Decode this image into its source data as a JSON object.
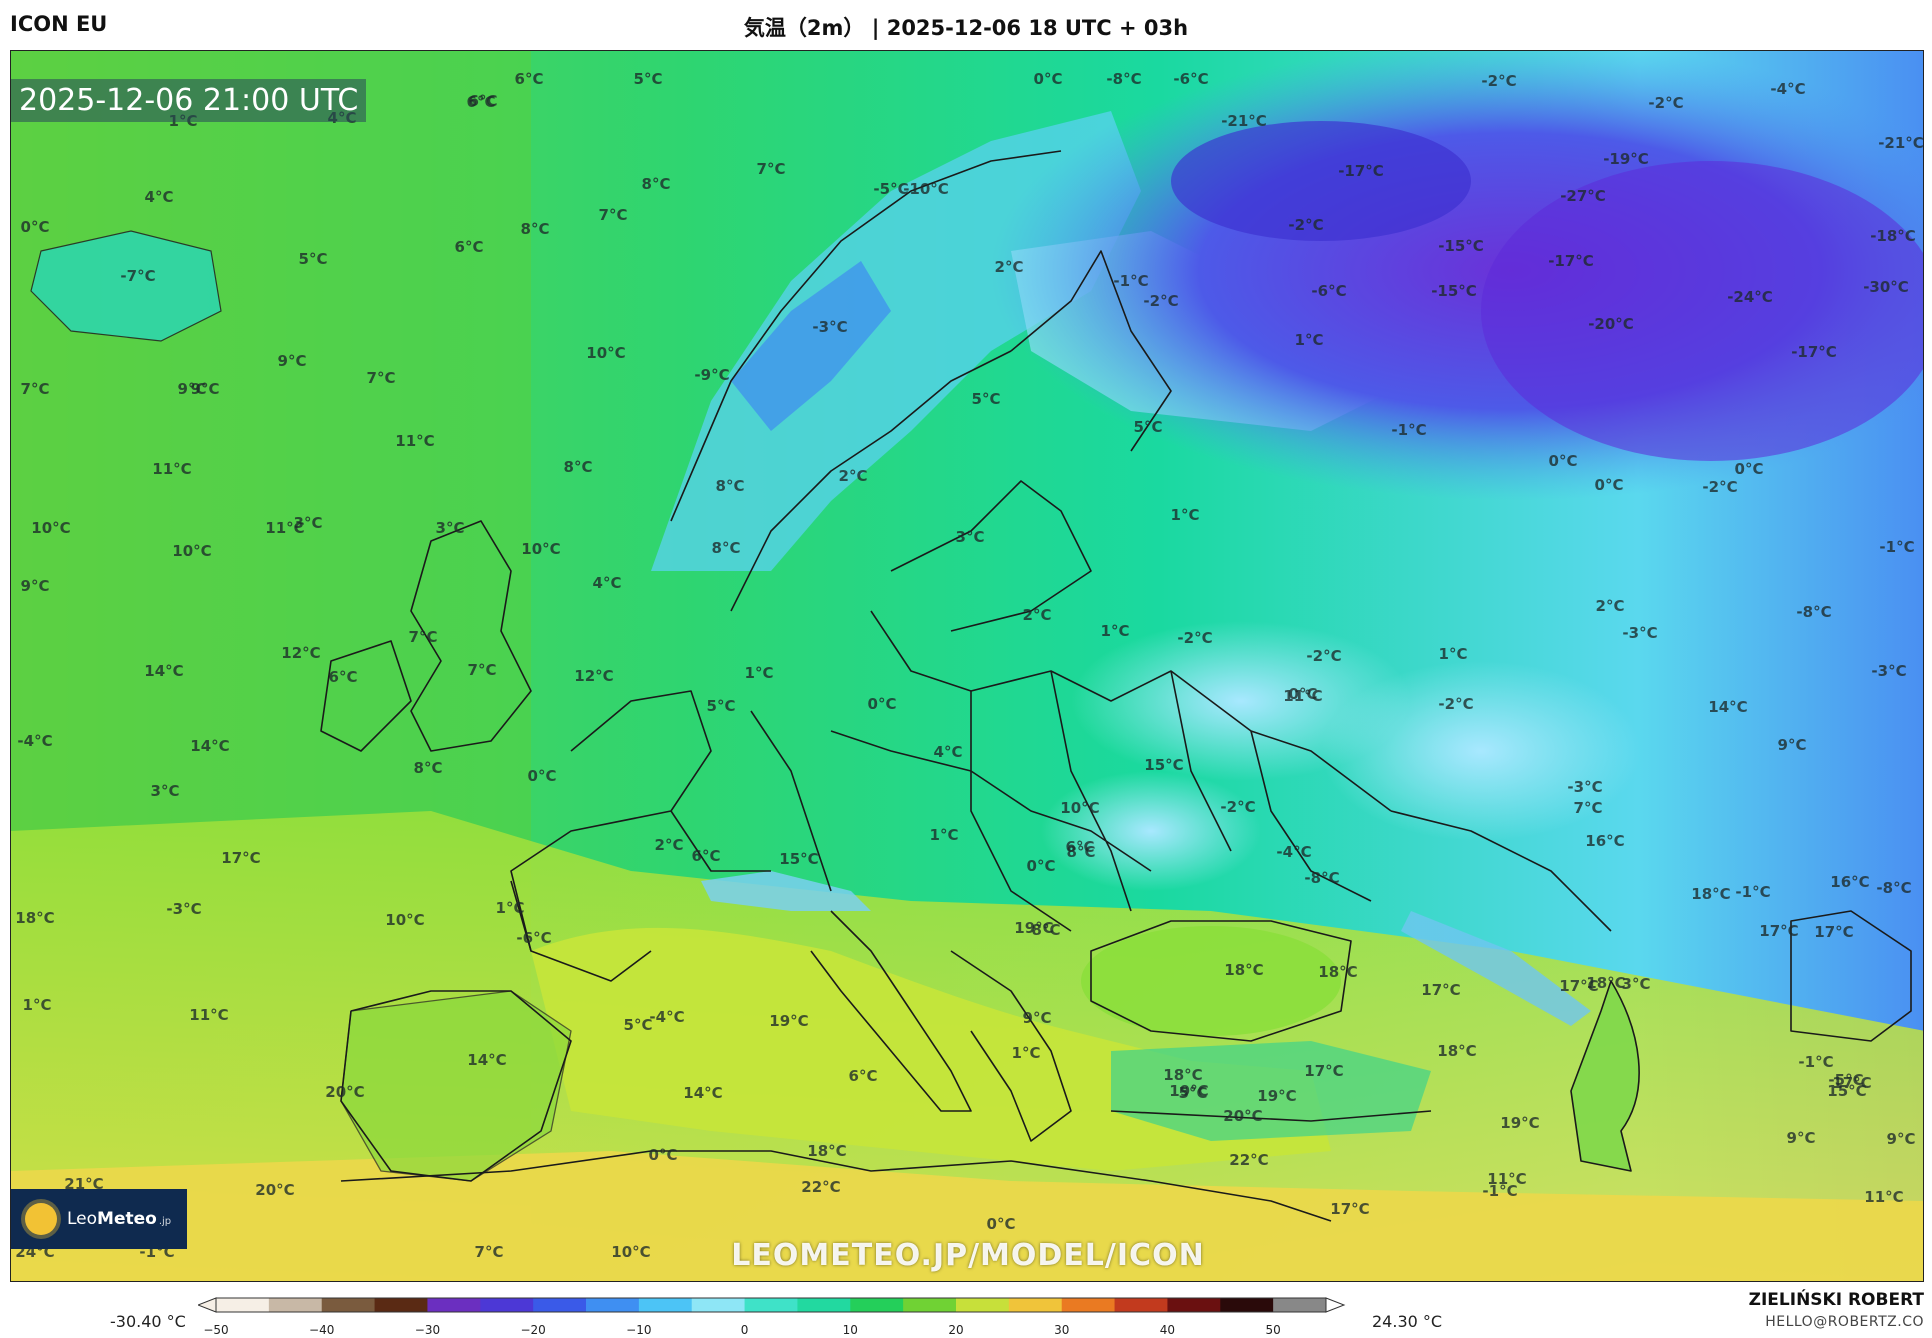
{
  "header": {
    "model": "ICON EU",
    "title": "気温（2m） | 2025-12-06 18 UTC + 03h"
  },
  "map": {
    "timestamp": "2025-12-06 21:00 UTC",
    "watermark": "LEOMETEO.JP/MODEL/ICON",
    "logo": {
      "name": "LeoMeteo",
      "name_bold": "Meteo",
      "name_prefix": "Leo",
      "suffix": ".jp",
      "icon": "sun-icon"
    },
    "labels": [
      "6°C",
      "5°C",
      "6°C",
      "0°C",
      "-8°C",
      "-6°C",
      "-2°C",
      "-4°C",
      "6°C",
      "1°C",
      "4°C",
      "-21°C",
      "-2°C",
      "-21°C",
      "7°C",
      "8°C",
      "4°C",
      "-5°C",
      "-10°C",
      "-17°C",
      "-19°C",
      "-27°C",
      "0°C",
      "-7°C",
      "6°C",
      "8°C",
      "7°C",
      "-2°C",
      "-15°C",
      "-17°C",
      "-18°C",
      "5°C",
      "2°C",
      "-1°C",
      "-2°C",
      "-15°C",
      "-6°C",
      "-24°C",
      "-30°C",
      "-3°C",
      "1°C",
      "-20°C",
      "-17°C",
      "10°C",
      "9°C",
      "9°C",
      "7°C",
      "-9°C",
      "7°C",
      "9°C",
      "5°C",
      "-1°C",
      "11°C",
      "8°C",
      "5°C",
      "8°C",
      "3°C",
      "0°C",
      "0°C",
      "0°C",
      "-2°C",
      "11°C",
      "2°C",
      "1°C",
      "10°C",
      "11°C",
      "3°C",
      "10°C",
      "4°C",
      "8°C",
      "3°C",
      "-1°C",
      "9°C",
      "10°C",
      "2°C",
      "1°C",
      "2°C",
      "-8°C",
      "12°C",
      "7°C",
      "-2°C",
      "-2°C",
      "1°C",
      "-3°C",
      "14°C",
      "6°C",
      "12°C",
      "7°C",
      "1°C",
      "0°C",
      "-2°C",
      "-3°C",
      "5°C",
      "0°C",
      "11°C",
      "14°C",
      "-4°C",
      "14°C",
      "9°C",
      "8°C",
      "0°C",
      "4°C",
      "15°C",
      "-3°C",
      "3°C",
      "10°C",
      "7°C",
      "6°C",
      "8°C",
      "-2°C",
      "16°C",
      "2°C",
      "6°C",
      "15°C",
      "1°C",
      "0°C",
      "-4°C",
      "-8°C",
      "17°C",
      "16°C",
      "18°C",
      "-1°C",
      "-8°C",
      "8°C",
      "-3°C",
      "1°C",
      "17°C",
      "17°C",
      "18°C",
      "10°C",
      "-6°C",
      "18°C",
      "19°C",
      "18°C",
      "17°C",
      "18°C",
      "17°C",
      "3°C",
      "1°C",
      "5°C",
      "19°C",
      "-4°C",
      "9°C",
      "18°C",
      "11°C",
      "14°C",
      "6°C",
      "1°C",
      "17°C",
      "-1°C",
      "20°C",
      "17°C",
      "-5°C",
      "5°C",
      "18°C",
      "15°C",
      "19°C",
      "20°C",
      "19°C",
      "14°C",
      "19°C",
      "9°C",
      "9°C",
      "0°C",
      "18°C",
      "22°C",
      "-1°C",
      "21°C",
      "20°C",
      "17°C",
      "11°C",
      "0°C",
      "11°C",
      "22°C",
      "24°C",
      "-1°C",
      "7°C",
      "10°C"
    ]
  },
  "colorbar": {
    "min_label": "-30.40 °C",
    "max_label": "24.30 °C",
    "ticks": [
      "−50",
      "−40",
      "−30",
      "−20",
      "−10",
      "0",
      "10",
      "20",
      "30",
      "40",
      "50"
    ]
  },
  "credits": {
    "author": "ZIELIŃSKI ROBERT",
    "email": "HELLO@ROBERTZ.CO"
  }
}
